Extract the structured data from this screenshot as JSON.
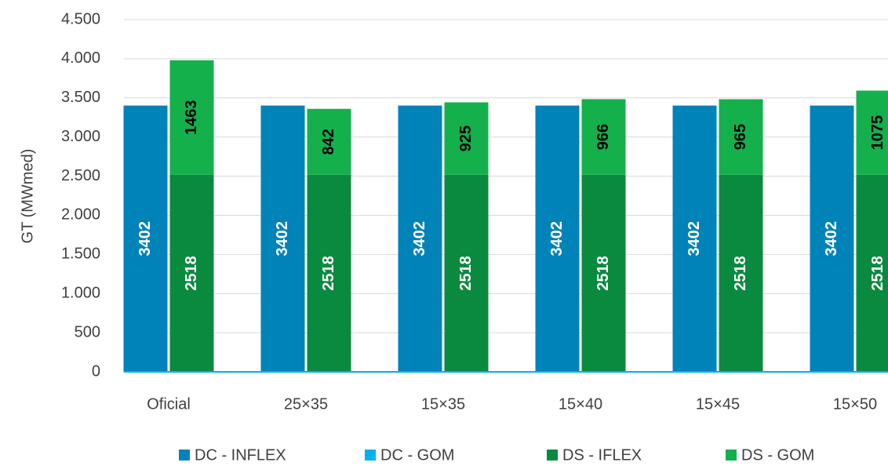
{
  "chart_data": {
    "type": "bar",
    "stacked": true,
    "y_label": "GT (MWmed)",
    "categories": [
      "Oficial",
      "25×35",
      "15×35",
      "15×40",
      "15×45",
      "15×50"
    ],
    "series": [
      {
        "name": "DC - INFLEX",
        "color": "#0083b9",
        "stack": 0,
        "label_color": "#ffffff",
        "values": [
          3402,
          3402,
          3402,
          3402,
          3402,
          3402
        ]
      },
      {
        "name": "DC - GOM",
        "color": "#00b0f0",
        "stack": 0,
        "label_color": "#ffffff",
        "values": [
          0,
          0,
          0,
          0,
          0,
          0
        ]
      },
      {
        "name": "DS - IFLEX",
        "color": "#0a8a3e",
        "stack": 1,
        "label_color": "#ffffff",
        "values": [
          2518,
          2518,
          2518,
          2518,
          2518,
          2518
        ]
      },
      {
        "name": "DS - GOM",
        "color": "#13b04c",
        "stack": 1,
        "label_color": "#000000",
        "values": [
          1463,
          842,
          925,
          966,
          965,
          1075
        ]
      }
    ],
    "ylim": [
      0,
      4500
    ],
    "yticks": [
      0,
      500,
      {
        "value": 1000,
        "label": "1.000"
      },
      {
        "value": 1500,
        "label": "1.500"
      },
      {
        "value": 2000,
        "label": "2.000"
      },
      {
        "value": 2500,
        "label": "2.500"
      },
      {
        "value": 3000,
        "label": "3.000"
      },
      {
        "value": 3500,
        "label": "3.500"
      },
      {
        "value": 4000,
        "label": "4.000"
      },
      {
        "value": 4500,
        "label": "4.500"
      }
    ],
    "grid": true,
    "legend": "bottom"
  }
}
